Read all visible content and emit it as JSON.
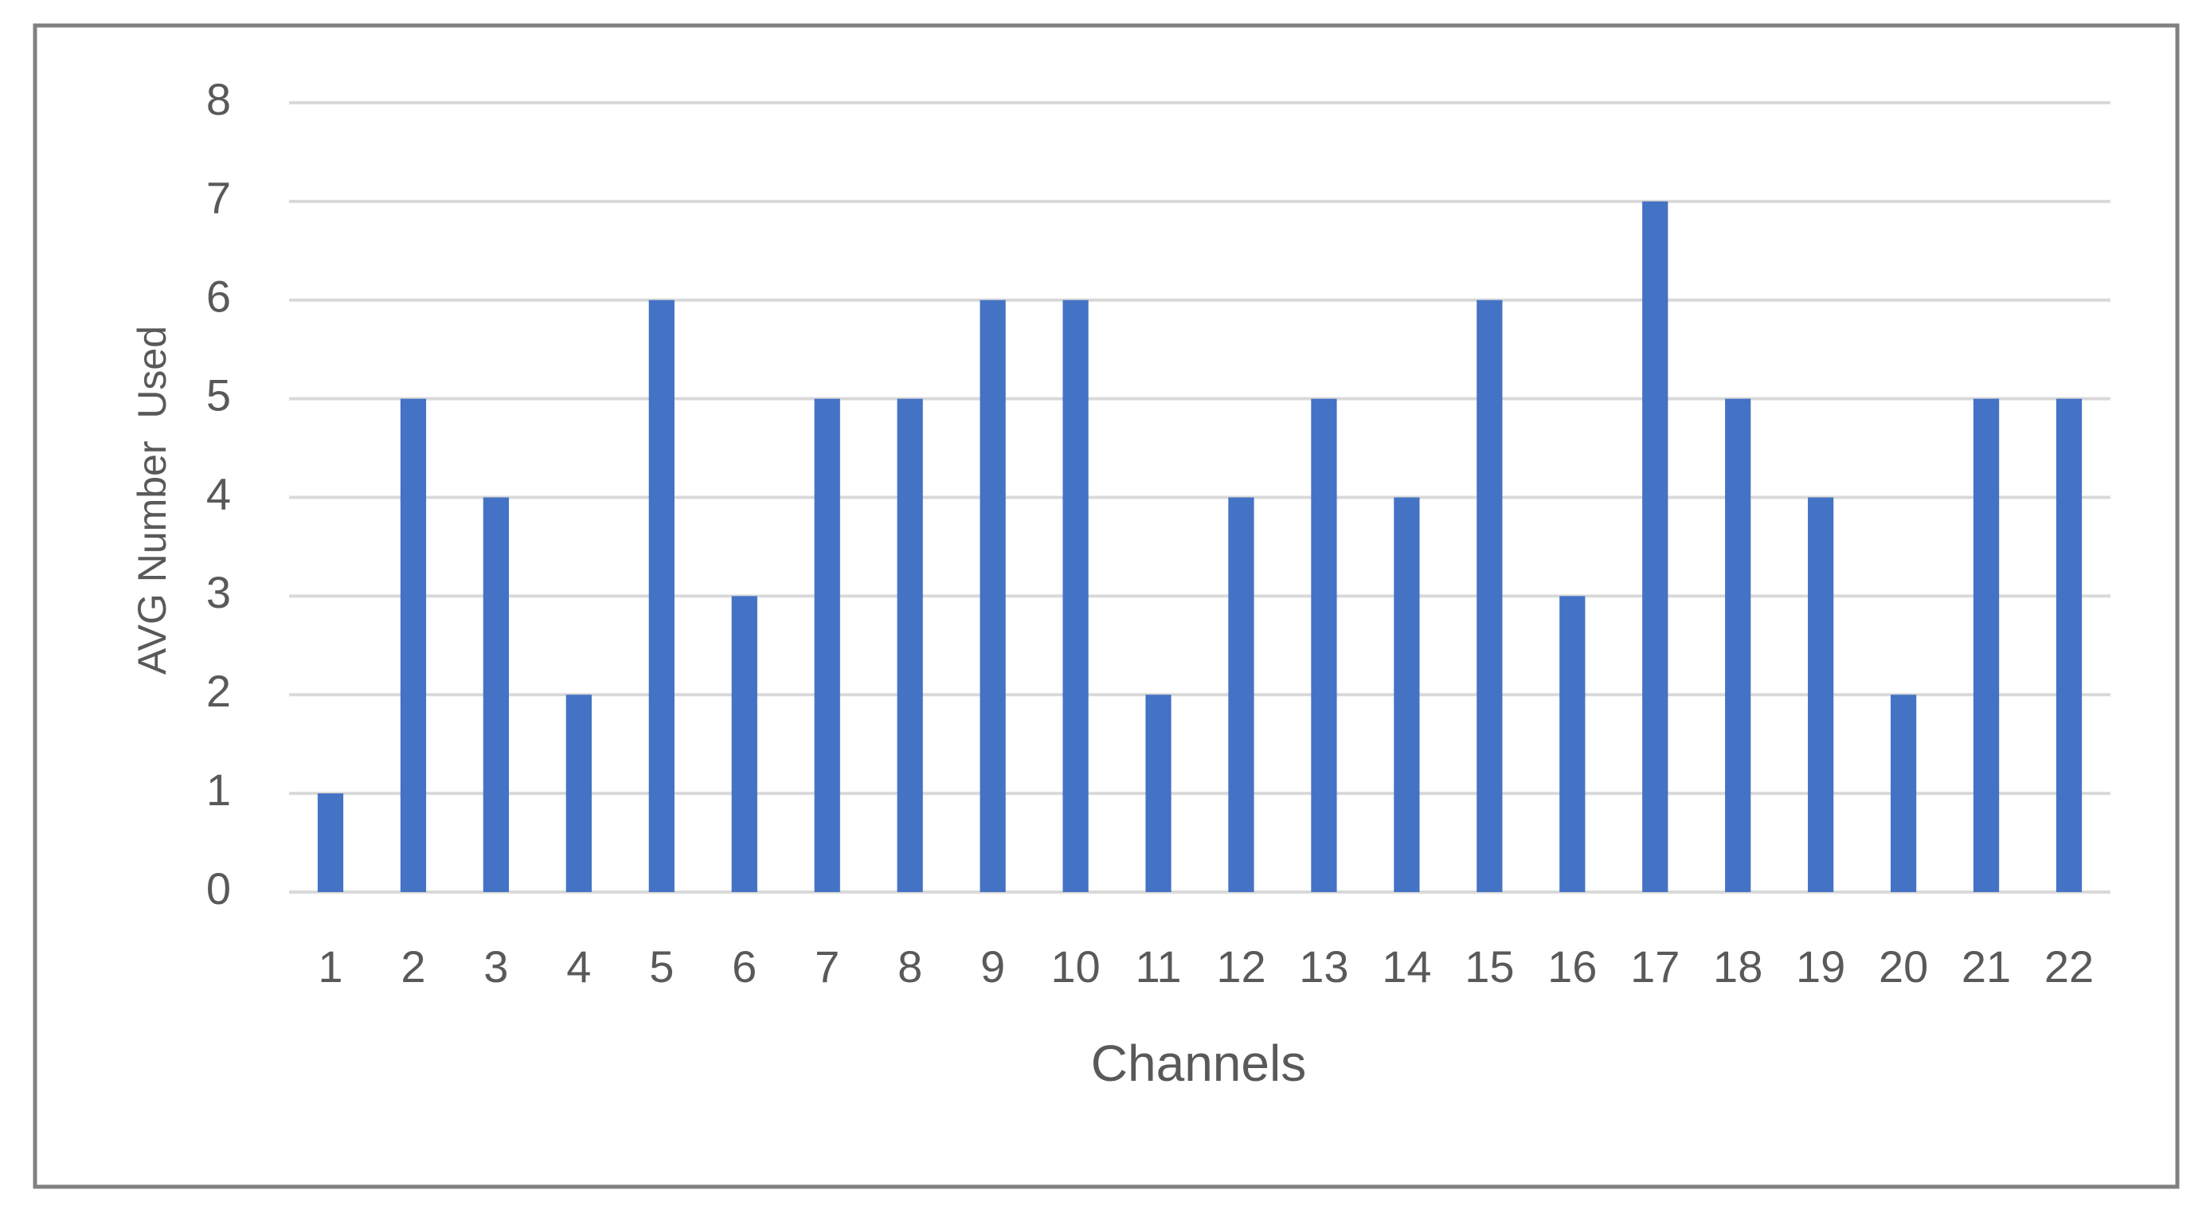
{
  "chart_data": {
    "type": "bar",
    "x_label": "Channels",
    "y_label": "AVG Number  Used",
    "categories": [
      "1",
      "2",
      "3",
      "4",
      "5",
      "6",
      "7",
      "8",
      "9",
      "10",
      "11",
      "12",
      "13",
      "14",
      "15",
      "16",
      "17",
      "18",
      "19",
      "20",
      "21",
      "22"
    ],
    "values": [
      1,
      5,
      4,
      2,
      6,
      3,
      5,
      5,
      6,
      6,
      2,
      4,
      5,
      4,
      6,
      3,
      7,
      5,
      4,
      2,
      5,
      5
    ],
    "color": "#4472c4",
    "ylim": [
      0,
      8
    ],
    "yticks": [
      0,
      1,
      2,
      3,
      4,
      5,
      6,
      7,
      8
    ],
    "grid": true
  }
}
